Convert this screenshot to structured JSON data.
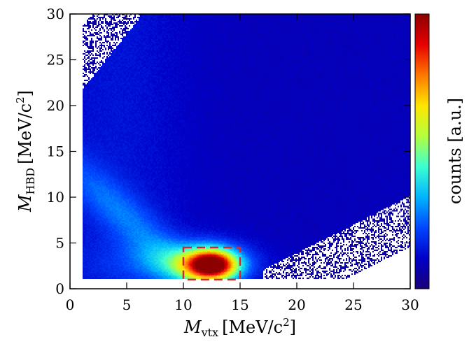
{
  "chart_data": {
    "type": "heatmap",
    "title": "",
    "x": {
      "label_main": "M",
      "label_sub": "vtx",
      "label_unit": "[MeV/c",
      "label_sup": "2",
      "label_close": "]",
      "lim": [
        0,
        30
      ],
      "ticks": [
        "0",
        "5",
        "10",
        "15",
        "20",
        "25",
        "30"
      ]
    },
    "y": {
      "label_main": "M",
      "label_sub": "HBD",
      "label_unit": "[MeV/c",
      "label_sup": "2",
      "label_close": "]",
      "lim": [
        0,
        30
      ],
      "ticks": [
        "0",
        "5",
        "10",
        "15",
        "20",
        "25",
        "30"
      ]
    },
    "colorbar": {
      "label": "counts [a.u.]",
      "scale": "linear",
      "colormap": [
        "#1a007a",
        "#0000c8",
        "#0046ff",
        "#00b4ff",
        "#3cffd2",
        "#b4ff3c",
        "#ffe600",
        "#ff7800",
        "#e60000",
        "#8c0000"
      ]
    },
    "hotspots": [
      {
        "x": 12.5,
        "y": 2.6,
        "peak": 1.0
      }
    ],
    "band": {
      "description_free": true,
      "x_range": [
        1,
        17
      ],
      "y_at_x1": 14,
      "y_at_x10": 4
    },
    "region_box": {
      "x": [
        10,
        15
      ],
      "y": [
        1,
        4.5
      ],
      "color": "#d62728",
      "style": "dashed"
    },
    "grid": false,
    "legend": "none"
  }
}
